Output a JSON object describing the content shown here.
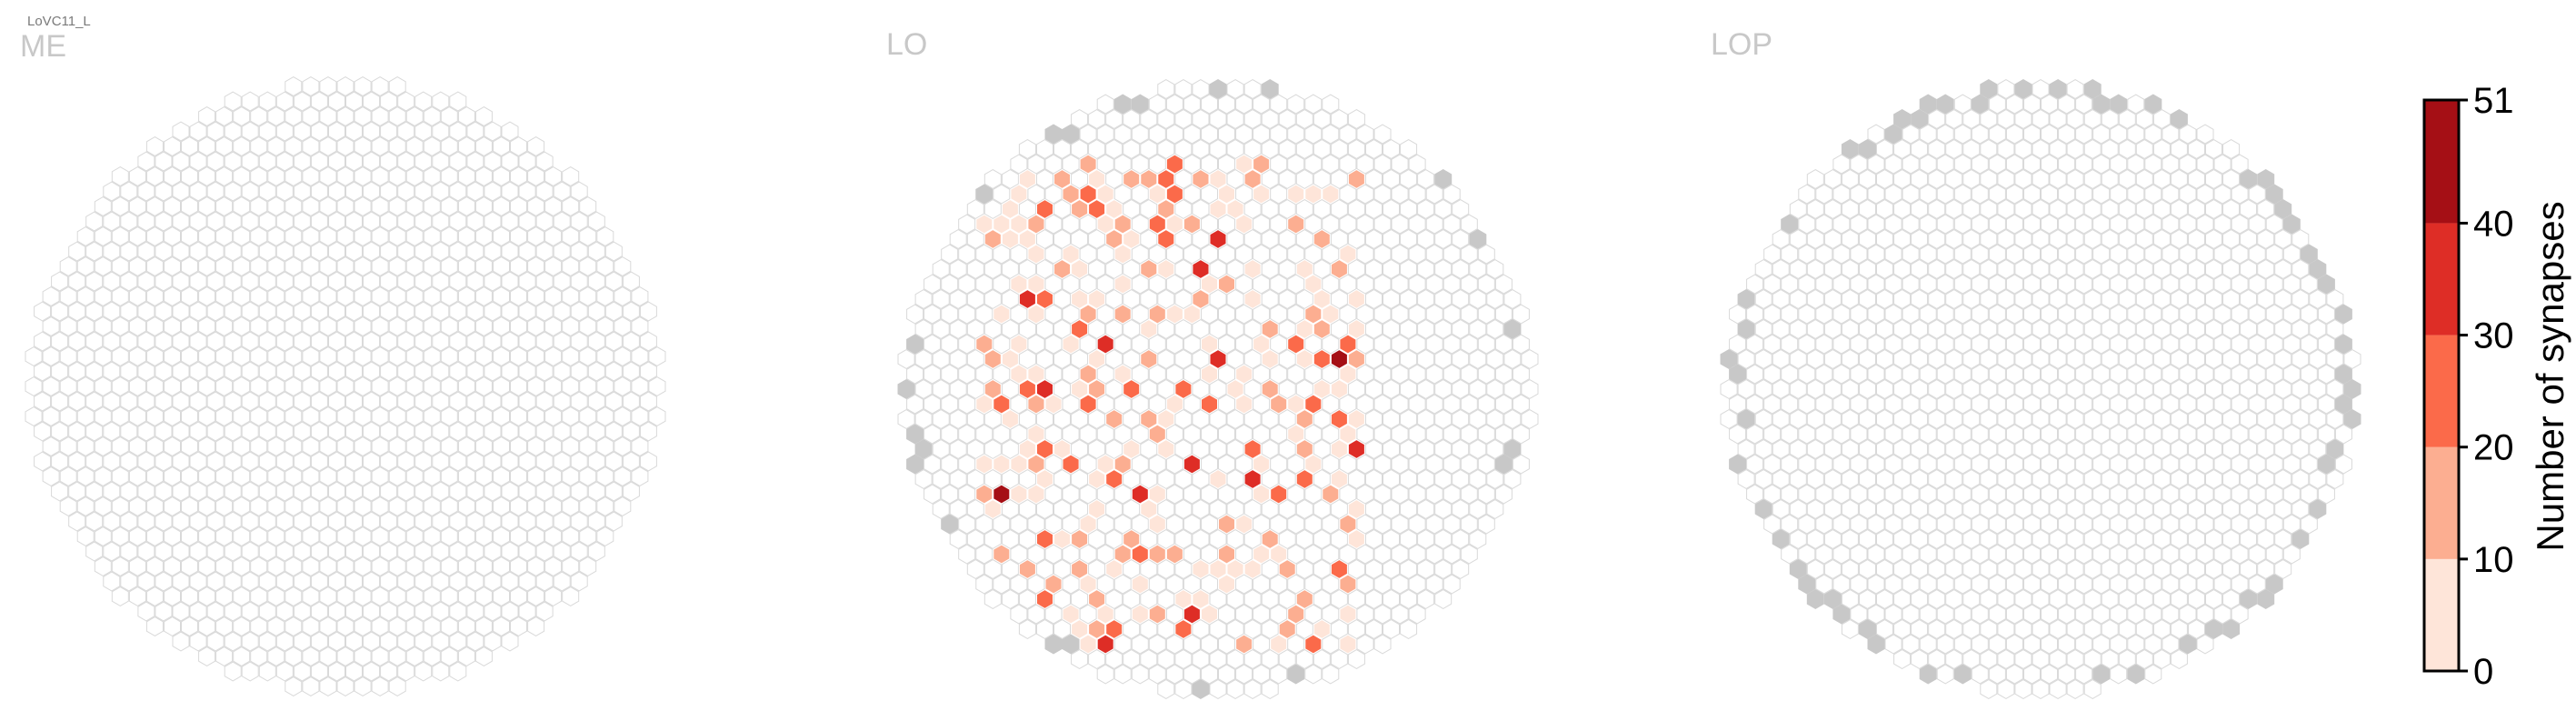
{
  "cell_type_label": "LoVC11_L",
  "colors": {
    "empty_stroke": "#d9d9d9",
    "outside_fill": "#c8c8c8",
    "bins": [
      "#fee5d9",
      "#fcae91",
      "#fb6a4a",
      "#de2d26",
      "#a50f15"
    ]
  },
  "colorbar": {
    "label": "Number of synapses",
    "ticks": [
      "0",
      "10",
      "20",
      "30",
      "40",
      "51"
    ]
  },
  "chart_data": [
    {
      "type": "heatmap",
      "title": "ME",
      "description": "Hexagonal column map; all columns show 0 synapses",
      "synapse_max": 51,
      "bins": [
        [
          0,
          10
        ],
        [
          10,
          20
        ],
        [
          20,
          30
        ],
        [
          30,
          40
        ],
        [
          40,
          51
        ]
      ],
      "outside_columns": 0,
      "columns_by_bin": {
        "0": 0,
        "1-10": 0,
        "10-20": 0,
        "20-30": 0,
        "30-40": 0,
        "40-51": 0
      }
    },
    {
      "type": "heatmap",
      "title": "LO",
      "description": "Hexagonal column map; synapses concentrated in left-center region",
      "synapse_max": 51,
      "bins": [
        [
          0,
          10
        ],
        [
          10,
          20
        ],
        [
          20,
          30
        ],
        [
          30,
          40
        ],
        [
          40,
          51
        ]
      ],
      "outside_columns": 22,
      "columns_by_bin": {
        "1-10": 130,
        "10-20": 70,
        "20-30": 34,
        "30-40": 12,
        "40-51": 2
      }
    },
    {
      "type": "heatmap",
      "title": "LOP",
      "description": "Hexagonal column map; no synapses inside, gray columns around the rim",
      "synapse_max": 51,
      "bins": [
        [
          0,
          10
        ],
        [
          10,
          20
        ],
        [
          20,
          30
        ],
        [
          30,
          40
        ],
        [
          40,
          51
        ]
      ],
      "outside_columns": 60,
      "columns_by_bin": {
        "0": 0
      }
    }
  ]
}
